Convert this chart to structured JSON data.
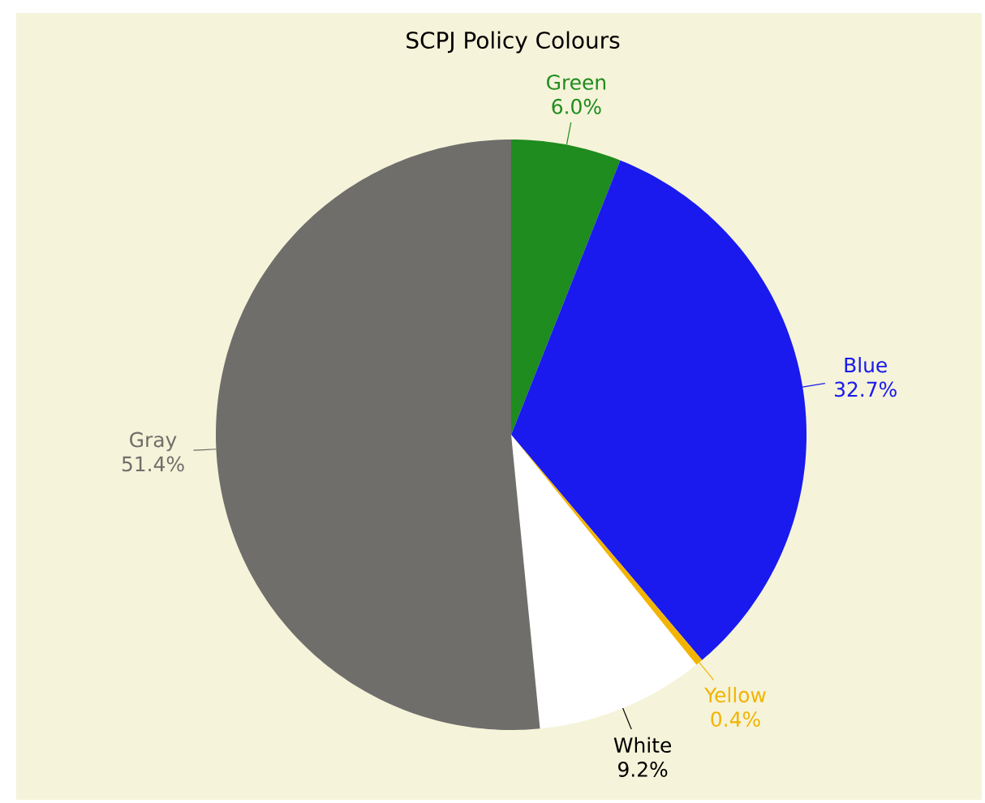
{
  "chart_data": {
    "type": "pie",
    "title": "SCPJ Policy Colours",
    "categories": [
      "Green",
      "Blue",
      "Yellow",
      "White",
      "Gray"
    ],
    "values": [
      6.0,
      32.7,
      0.4,
      9.2,
      51.4
    ],
    "value_labels": [
      "6.0%",
      "32.7%",
      "0.4%",
      "9.2%",
      "51.4%"
    ],
    "colors": [
      "#1e8c1e",
      "#1a1aee",
      "#f2b400",
      "#ffffff",
      "#6f6e6b"
    ]
  }
}
